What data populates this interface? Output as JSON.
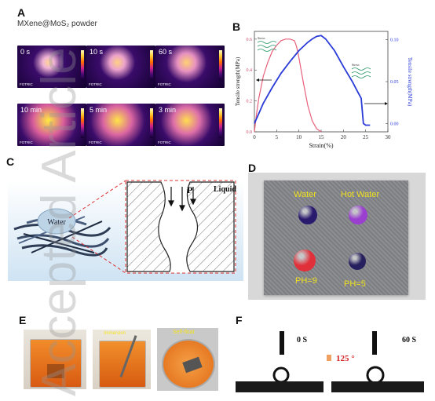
{
  "panels": {
    "a": {
      "letter": "A",
      "title": "MXene@MoS₂ powder",
      "brand": "FOTRIC",
      "frames": [
        {
          "label": "0 s",
          "heat": 0.1
        },
        {
          "label": "10 s",
          "heat": 0.25
        },
        {
          "label": "60 s",
          "heat": 0.4
        },
        {
          "label": "10 min",
          "heat": 0.95
        },
        {
          "label": "5 min",
          "heat": 0.85
        },
        {
          "label": "3 min",
          "heat": 0.75
        }
      ]
    },
    "b": {
      "letter": "B",
      "inset_label_left": "Stress",
      "inset_label_right": "Stress"
    },
    "c": {
      "letter": "C",
      "water_label": "Water",
      "pressure_label": "P",
      "liquid_label": "Liquid"
    },
    "d": {
      "letter": "D",
      "labels": {
        "water": "Water",
        "hot_water": "Hot Water",
        "ph9": "PH=9",
        "ph5": "PH=5"
      },
      "colors": {
        "water": "#2a1a6e",
        "hot_water": "#9a3fd0",
        "ph9": "#e0303a",
        "ph5": "#26205e"
      }
    },
    "e": {
      "letter": "E",
      "labels": [
        "Immersion",
        "Self-float"
      ]
    },
    "f": {
      "letter": "F",
      "time_left": "0 S",
      "time_right": "60 S",
      "angle": "125 °"
    }
  },
  "watermark": "Accepted Article",
  "chart_data": {
    "type": "line",
    "title": "",
    "xlabel": "Strain(%)",
    "ylabel": "Tensile strength(MPa)",
    "y2label": "Tensile strength(MPa)",
    "xlim": [
      0,
      30
    ],
    "xticks": [
      0,
      5,
      10,
      15,
      20,
      25,
      30
    ],
    "ylim": [
      0,
      0.65
    ],
    "yticks": [
      0.0,
      0.2,
      0.4,
      0.6
    ],
    "y2lim": [
      -0.01,
      0.11
    ],
    "y2ticks": [
      0.0,
      0.05,
      0.1
    ],
    "series": [
      {
        "axis": "left",
        "color": "#e8607a",
        "x": [
          0,
          0.5,
          1,
          2,
          3,
          4,
          5,
          6,
          7,
          8,
          9,
          9.5,
          10,
          11,
          12,
          13,
          14,
          15
        ],
        "y": [
          0.0,
          0.12,
          0.22,
          0.36,
          0.45,
          0.52,
          0.56,
          0.59,
          0.6,
          0.6,
          0.59,
          0.55,
          0.48,
          0.32,
          0.17,
          0.07,
          0.02,
          0.0
        ]
      },
      {
        "axis": "right",
        "color": "#2a3bd8",
        "x": [
          0,
          1,
          2,
          4,
          6,
          8,
          10,
          12,
          13,
          14,
          15,
          16,
          18,
          20,
          22,
          23,
          24,
          24.5,
          25,
          26
        ],
        "y": [
          0.0,
          0.012,
          0.024,
          0.043,
          0.06,
          0.074,
          0.087,
          0.097,
          0.101,
          0.104,
          0.105,
          0.101,
          0.087,
          0.068,
          0.05,
          0.04,
          0.03,
          0.0,
          -0.002,
          -0.002
        ]
      }
    ]
  }
}
